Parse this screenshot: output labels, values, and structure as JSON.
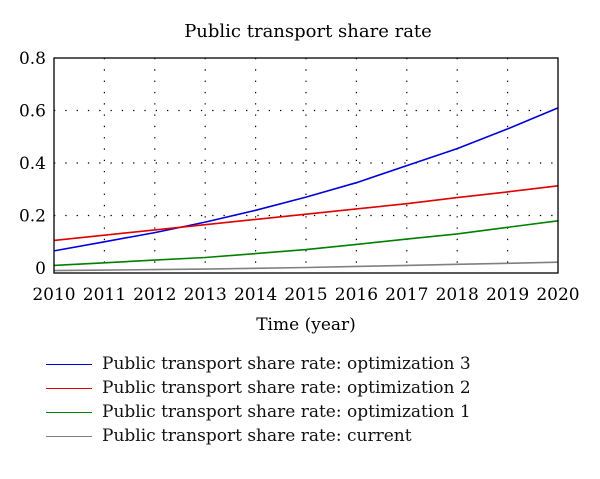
{
  "chart_data": {
    "type": "line",
    "title": "Public transport share rate",
    "xlabel": "Time (year)",
    "ylabel": "",
    "xlim": [
      2010,
      2020
    ],
    "ylim": [
      0,
      0.8
    ],
    "x_ticks": [
      "2010",
      "2011",
      "2012",
      "2013",
      "2014",
      "2015",
      "2016",
      "2017",
      "2018",
      "2019",
      "2020"
    ],
    "y_ticks": [
      "0",
      "0.2",
      "0.4",
      "0.6",
      "0.8"
    ],
    "grid": "dotted",
    "legend_position": "bottom",
    "x": [
      2010,
      2011,
      2012,
      2013,
      2014,
      2015,
      2016,
      2017,
      2018,
      2019,
      2020
    ],
    "series": [
      {
        "name": "Public transport share rate: optimization 3",
        "color": "#0000e0",
        "values": [
          0.065,
          0.1,
          0.135,
          0.175,
          0.22,
          0.27,
          0.325,
          0.39,
          0.455,
          0.53,
          0.61
        ]
      },
      {
        "name": "Public transport share rate: optimization 2",
        "color": "#e00000",
        "values": [
          0.105,
          0.125,
          0.145,
          0.165,
          0.185,
          0.205,
          0.225,
          0.245,
          0.268,
          0.29,
          0.313
        ]
      },
      {
        "name": "Public transport share rate: optimization 1",
        "color": "#008000",
        "values": [
          0.01,
          0.02,
          0.03,
          0.04,
          0.055,
          0.07,
          0.09,
          0.11,
          0.13,
          0.155,
          0.18
        ]
      },
      {
        "name": "Public transport share rate: current",
        "color": "#808080",
        "values": [
          -0.01,
          -0.008,
          -0.006,
          -0.004,
          -0.001,
          0.002,
          0.006,
          0.01,
          0.014,
          0.018,
          0.022
        ]
      }
    ]
  }
}
